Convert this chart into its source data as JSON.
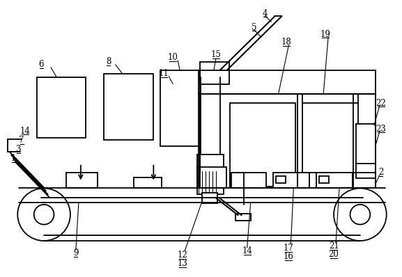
{
  "bg_color": "#ffffff",
  "line_color": "#000000",
  "lw": 1.3,
  "fig_width": 5.77,
  "fig_height": 3.98
}
